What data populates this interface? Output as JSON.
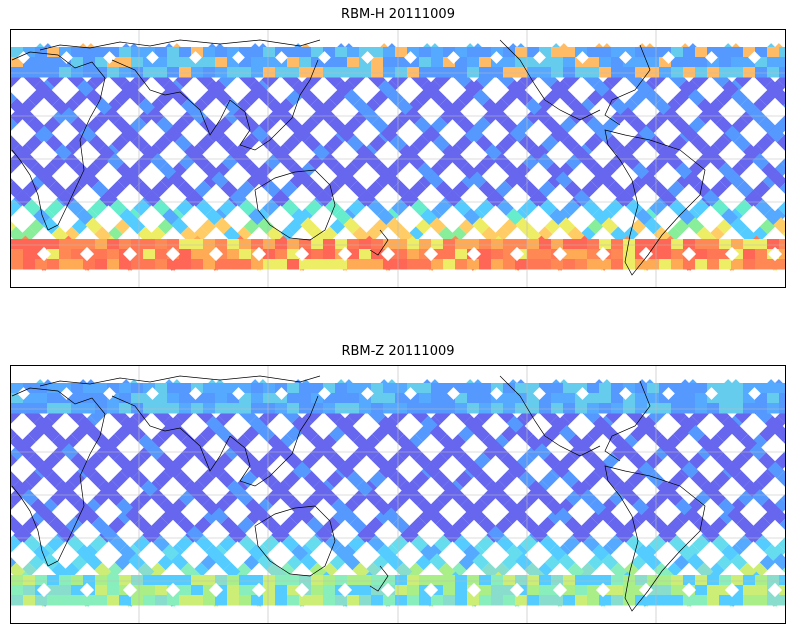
{
  "maps": [
    {
      "title": "RBM-H 20111009",
      "date": "20111009",
      "variable": "RBM-H",
      "high_latitude_band_intensity": "high"
    },
    {
      "title": "RBM-Z 20111009",
      "date": "20111009",
      "variable": "RBM-Z",
      "high_latitude_band_intensity": "moderate"
    }
  ],
  "colormap": "jet",
  "colors": {
    "track_low": "#6666ee",
    "track_mid": "#55bbff",
    "track_high": "#ff6655",
    "coastline": "#000000",
    "grid": "#cccccc"
  },
  "grid": true
}
